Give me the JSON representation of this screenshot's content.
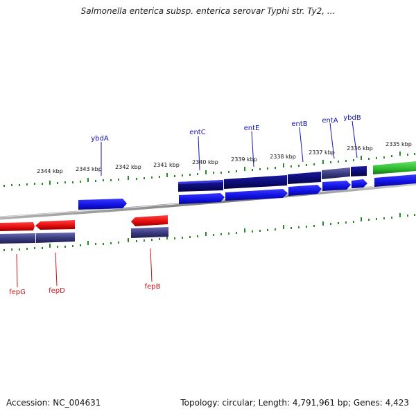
{
  "title": "Salmonella enterica subsp. enterica serovar Typhi str. Ty2, ...",
  "footer": {
    "accession": "Accession: NC_004631",
    "info": "Topology: circular; Length: 4,791,961 bp; Genes: 4,423"
  },
  "ticks": [
    "2344 kbp",
    "2343 kbp",
    "2342 kbp",
    "2341 kbp",
    "2340 kbp",
    "2339 kbp",
    "2338 kbp",
    "2337 kbp",
    "2336 kbp",
    "2335 kbp"
  ],
  "genes": [
    {
      "name": "ybdA",
      "strand": "forward",
      "color": "#1414b4"
    },
    {
      "name": "entC",
      "strand": "forward",
      "color": "#1414b4"
    },
    {
      "name": "entE",
      "strand": "forward",
      "color": "#1414b4"
    },
    {
      "name": "entB",
      "strand": "forward",
      "color": "#1414b4"
    },
    {
      "name": "entA",
      "strand": "forward",
      "color": "#1414b4"
    },
    {
      "name": "ybdB",
      "strand": "forward",
      "color": "#1414b4"
    },
    {
      "name": "fepG",
      "strand": "reverse",
      "color": "#c81414"
    },
    {
      "name": "fepD",
      "strand": "reverse",
      "color": "#c81414"
    },
    {
      "name": "fepB",
      "strand": "reverse",
      "color": "#c81414"
    }
  ],
  "colors": {
    "forward_cds": "#1414dc",
    "reverse_cds": "#e01010",
    "forward_feature": "#0c0c78",
    "reverse_feature": "#3c3c80",
    "other": "#33bb33",
    "tick": "#2a8a2a",
    "backbone": "#888888"
  }
}
